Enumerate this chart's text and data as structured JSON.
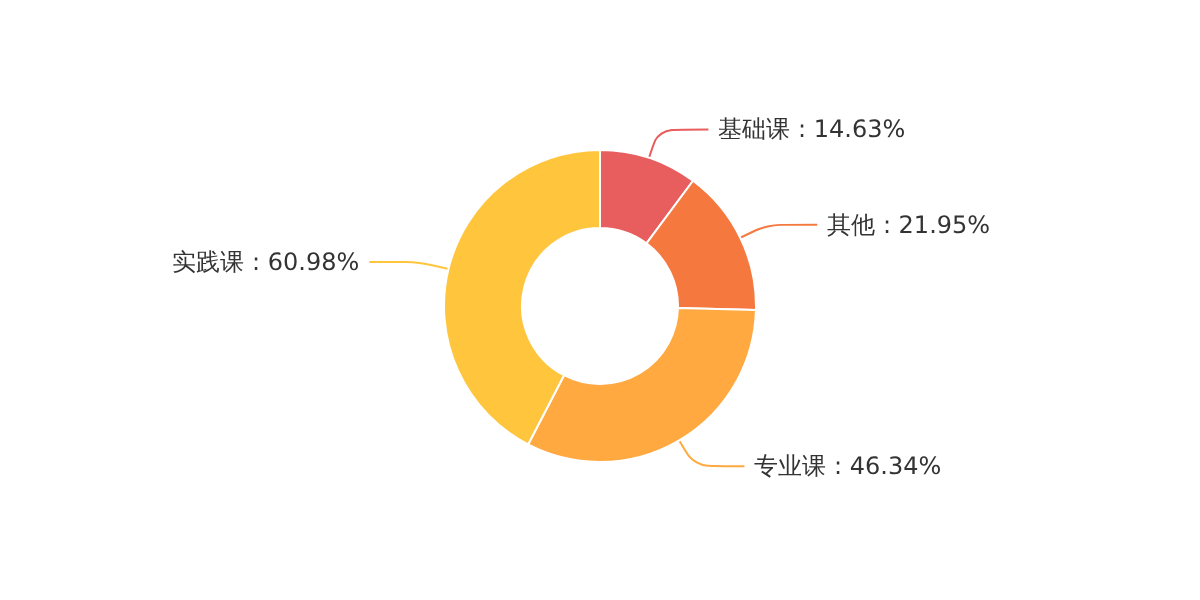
{
  "chart_data": {
    "type": "donut",
    "categories": [
      "基础课",
      "其他",
      "专业课",
      "实践课"
    ],
    "values": [
      14.63,
      21.95,
      46.34,
      60.98
    ],
    "value_labels": [
      "14.63%",
      "21.95%",
      "46.34%",
      "60.98%"
    ],
    "colors": [
      "#e85d5d",
      "#f5793f",
      "#ffa940",
      "#ffc53d"
    ],
    "legend": false
  }
}
